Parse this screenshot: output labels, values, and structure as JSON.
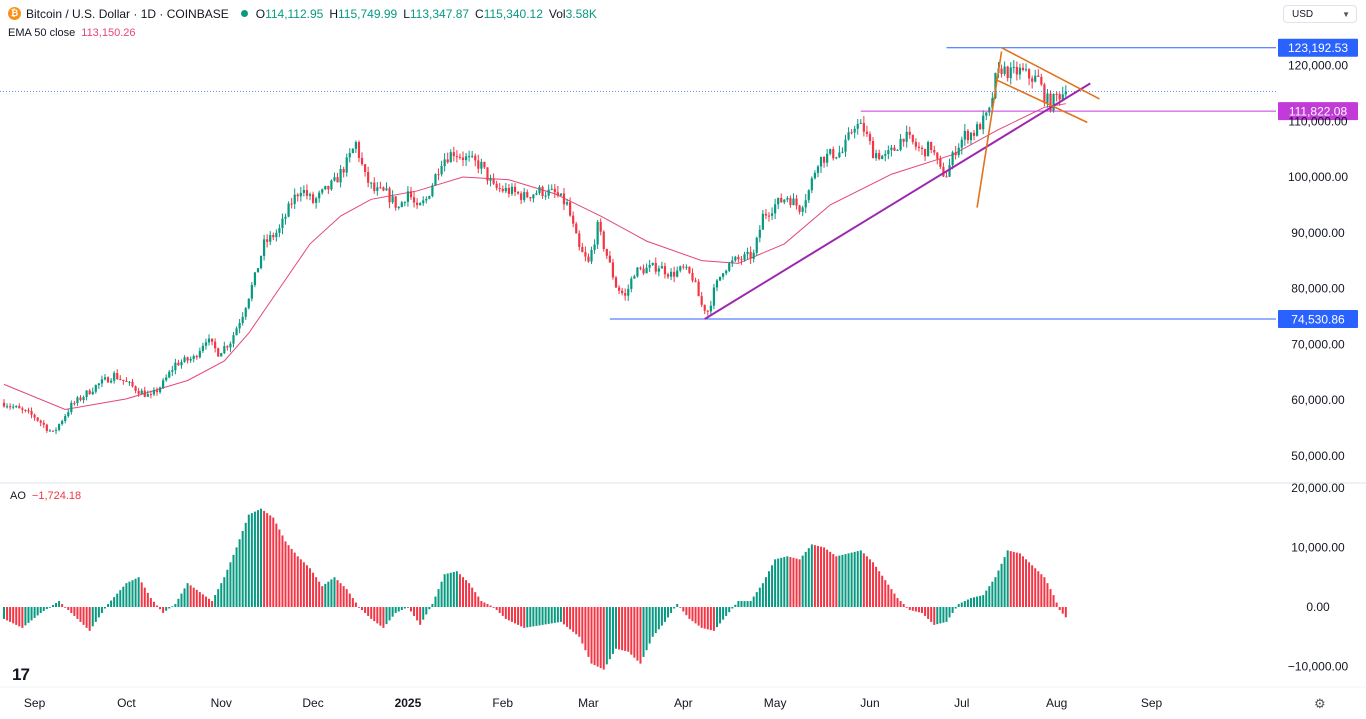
{
  "header": {
    "symbol": "Bitcoin / U.S. Dollar · 1D · COINBASE",
    "open_label": "O",
    "open": "114,112.95",
    "high_label": "H",
    "high": "115,749.99",
    "low_label": "L",
    "low": "113,347.87",
    "close_label": "C",
    "close": "115,340.12",
    "vol_label": "Vol",
    "vol": "3.58K",
    "ema_label": "EMA 50 close",
    "ema_value": "113,150.26"
  },
  "currency": {
    "label": "USD"
  },
  "ao_panel": {
    "label": "AO",
    "value": "−1,724.18"
  },
  "colors": {
    "up": "#089981",
    "down": "#f23645",
    "ema": "#e5457a",
    "hline_blue": "#2962ff",
    "hline_magenta": "#c23bd8",
    "trend_purple": "#9c27b0",
    "pattern_orange": "#e0731d"
  },
  "chart_data": {
    "type": "candlestick",
    "price_axis": {
      "ticks": [
        {
          "value": 120000,
          "label": "120,000.00"
        },
        {
          "value": 110000,
          "label": "110,000.00"
        },
        {
          "value": 100000,
          "label": "100,000.00"
        },
        {
          "value": 90000,
          "label": "90,000.00"
        },
        {
          "value": 80000,
          "label": "80,000.00"
        },
        {
          "value": 70000,
          "label": "70,000.00"
        },
        {
          "value": 60000,
          "label": "60,000.00"
        },
        {
          "value": 50000,
          "label": "50,000.00"
        }
      ]
    },
    "ao_axis": {
      "ticks": [
        {
          "value": 20000,
          "label": "20,000.00"
        },
        {
          "value": 10000,
          "label": "10,000.00"
        },
        {
          "value": 0,
          "label": "0.00"
        },
        {
          "value": -10000,
          "label": "−10,000.00"
        }
      ]
    },
    "time_axis": {
      "ticks": [
        {
          "day": 10,
          "label": "Sep",
          "bold": false
        },
        {
          "day": 40,
          "label": "Oct",
          "bold": false
        },
        {
          "day": 71,
          "label": "Nov",
          "bold": false
        },
        {
          "day": 101,
          "label": "Dec",
          "bold": false
        },
        {
          "day": 132,
          "label": "2025",
          "bold": true
        },
        {
          "day": 163,
          "label": "Feb",
          "bold": false
        },
        {
          "day": 191,
          "label": "Mar",
          "bold": false
        },
        {
          "day": 222,
          "label": "Apr",
          "bold": false
        },
        {
          "day": 252,
          "label": "May",
          "bold": false
        },
        {
          "day": 283,
          "label": "Jun",
          "bold": false
        },
        {
          "day": 313,
          "label": "Jul",
          "bold": false
        },
        {
          "day": 344,
          "label": "Aug",
          "bold": false
        },
        {
          "day": 375,
          "label": "Sep",
          "bold": false
        }
      ]
    },
    "price_path": [
      [
        0,
        59500
      ],
      [
        10,
        57000
      ],
      [
        16,
        54000
      ],
      [
        22,
        59000
      ],
      [
        30,
        62500
      ],
      [
        36,
        64500
      ],
      [
        43,
        62000
      ],
      [
        48,
        60500
      ],
      [
        52,
        63000
      ],
      [
        56,
        66500
      ],
      [
        62,
        67500
      ],
      [
        66,
        71000
      ],
      [
        70,
        68500
      ],
      [
        74,
        70500
      ],
      [
        78,
        75500
      ],
      [
        82,
        82000
      ],
      [
        85,
        88000
      ],
      [
        90,
        90500
      ],
      [
        94,
        95500
      ],
      [
        97,
        98000
      ],
      [
        101,
        95500
      ],
      [
        105,
        97500
      ],
      [
        108,
        99000
      ],
      [
        112,
        102500
      ],
      [
        115,
        106000
      ],
      [
        118,
        100000
      ],
      [
        121,
        97500
      ],
      [
        125,
        97000
      ],
      [
        129,
        94500
      ],
      [
        132,
        97500
      ],
      [
        135,
        94000
      ],
      [
        138,
        96000
      ],
      [
        143,
        103000
      ],
      [
        147,
        104500
      ],
      [
        152,
        103000
      ],
      [
        156,
        102000
      ],
      [
        160,
        98000
      ],
      [
        165,
        97500
      ],
      [
        170,
        96500
      ],
      [
        175,
        97500
      ],
      [
        180,
        97000
      ],
      [
        184,
        95000
      ],
      [
        188,
        87000
      ],
      [
        191,
        84500
      ],
      [
        194,
        91000
      ],
      [
        197,
        86000
      ],
      [
        200,
        80500
      ],
      [
        203,
        78500
      ],
      [
        206,
        83000
      ],
      [
        210,
        83500
      ],
      [
        214,
        84000
      ],
      [
        218,
        82500
      ],
      [
        222,
        83500
      ],
      [
        225,
        82000
      ],
      [
        228,
        77000
      ],
      [
        230,
        76000
      ],
      [
        232,
        79500
      ],
      [
        235,
        83500
      ],
      [
        239,
        85000
      ],
      [
        242,
        85500
      ],
      [
        245,
        86000
      ],
      [
        248,
        93000
      ],
      [
        252,
        95000
      ],
      [
        256,
        96500
      ],
      [
        260,
        94500
      ],
      [
        263,
        97500
      ],
      [
        266,
        103000
      ],
      [
        270,
        104000
      ],
      [
        274,
        104500
      ],
      [
        278,
        109500
      ],
      [
        281,
        108500
      ],
      [
        284,
        104500
      ],
      [
        288,
        103500
      ],
      [
        291,
        105000
      ],
      [
        294,
        107500
      ],
      [
        297,
        106000
      ],
      [
        300,
        104500
      ],
      [
        303,
        105500
      ],
      [
        306,
        101000
      ],
      [
        308,
        100500
      ],
      [
        311,
        105000
      ],
      [
        314,
        107500
      ],
      [
        317,
        108000
      ],
      [
        320,
        110000
      ],
      [
        322,
        111500
      ],
      [
        324,
        117500
      ],
      [
        326,
        119500
      ],
      [
        329,
        118500
      ],
      [
        332,
        119000
      ],
      [
        335,
        118000
      ],
      [
        338,
        117500
      ],
      [
        340,
        114500
      ],
      [
        342,
        113000
      ],
      [
        344,
        114500
      ],
      [
        347,
        115340
      ]
    ],
    "ema50": [
      [
        0,
        62800
      ],
      [
        20,
        58300
      ],
      [
        40,
        60200
      ],
      [
        60,
        63500
      ],
      [
        72,
        67000
      ],
      [
        80,
        72000
      ],
      [
        90,
        80000
      ],
      [
        100,
        88000
      ],
      [
        110,
        93000
      ],
      [
        120,
        96000
      ],
      [
        135,
        97500
      ],
      [
        150,
        100000
      ],
      [
        165,
        99500
      ],
      [
        180,
        97000
      ],
      [
        195,
        93000
      ],
      [
        210,
        88500
      ],
      [
        228,
        85000
      ],
      [
        240,
        84500
      ],
      [
        255,
        88000
      ],
      [
        270,
        95000
      ],
      [
        290,
        100500
      ],
      [
        310,
        104000
      ],
      [
        325,
        108500
      ],
      [
        340,
        112500
      ],
      [
        347,
        113150
      ]
    ],
    "ao_path": [
      [
        0,
        -2000
      ],
      [
        6,
        -3500
      ],
      [
        12,
        -1000
      ],
      [
        18,
        1000
      ],
      [
        24,
        -2000
      ],
      [
        28,
        -4000
      ],
      [
        34,
        500
      ],
      [
        40,
        4000
      ],
      [
        44,
        5000
      ],
      [
        48,
        1500
      ],
      [
        52,
        -1000
      ],
      [
        56,
        500
      ],
      [
        60,
        4000
      ],
      [
        64,
        2500
      ],
      [
        68,
        1000
      ],
      [
        72,
        5000
      ],
      [
        76,
        10000
      ],
      [
        80,
        15500
      ],
      [
        84,
        16500
      ],
      [
        88,
        15000
      ],
      [
        92,
        11000
      ],
      [
        96,
        8500
      ],
      [
        100,
        6500
      ],
      [
        104,
        3500
      ],
      [
        108,
        5000
      ],
      [
        112,
        3000
      ],
      [
        116,
        0
      ],
      [
        120,
        -2000
      ],
      [
        124,
        -3500
      ],
      [
        128,
        -1000
      ],
      [
        132,
        0
      ],
      [
        136,
        -3000
      ],
      [
        140,
        500
      ],
      [
        144,
        5500
      ],
      [
        148,
        6000
      ],
      [
        152,
        4000
      ],
      [
        156,
        1000
      ],
      [
        160,
        0
      ],
      [
        164,
        -2000
      ],
      [
        170,
        -3500
      ],
      [
        176,
        -3000
      ],
      [
        182,
        -2500
      ],
      [
        188,
        -5000
      ],
      [
        192,
        -9500
      ],
      [
        196,
        -10500
      ],
      [
        200,
        -7000
      ],
      [
        204,
        -7500
      ],
      [
        208,
        -9500
      ],
      [
        212,
        -5000
      ],
      [
        216,
        -2500
      ],
      [
        220,
        500
      ],
      [
        224,
        -2000
      ],
      [
        228,
        -3500
      ],
      [
        232,
        -4000
      ],
      [
        236,
        -1500
      ],
      [
        240,
        1000
      ],
      [
        244,
        1000
      ],
      [
        248,
        4000
      ],
      [
        252,
        8000
      ],
      [
        256,
        8500
      ],
      [
        260,
        8000
      ],
      [
        264,
        10500
      ],
      [
        268,
        10000
      ],
      [
        272,
        8500
      ],
      [
        276,
        9000
      ],
      [
        280,
        9500
      ],
      [
        284,
        7500
      ],
      [
        288,
        4500
      ],
      [
        292,
        1500
      ],
      [
        296,
        -500
      ],
      [
        300,
        -1000
      ],
      [
        304,
        -3000
      ],
      [
        308,
        -2500
      ],
      [
        312,
        500
      ],
      [
        316,
        1500
      ],
      [
        320,
        2000
      ],
      [
        324,
        5000
      ],
      [
        328,
        9500
      ],
      [
        332,
        9000
      ],
      [
        336,
        7000
      ],
      [
        340,
        5000
      ],
      [
        343,
        2000
      ],
      [
        345,
        -500
      ],
      [
        347,
        -1724
      ]
    ],
    "horizontal_lines": [
      {
        "value": 123192.53,
        "label": "123,192.53",
        "from_day": 308,
        "color_key": "hline_blue"
      },
      {
        "value": 111822.08,
        "label": "111,822.08",
        "from_day": 280,
        "color_key": "hline_magenta"
      },
      {
        "value": 74530.86,
        "label": "74,530.86",
        "from_day": 198,
        "color_key": "hline_blue"
      }
    ],
    "current_price": {
      "value": 115340.12
    },
    "drawings": [
      {
        "kind": "trendline",
        "color_key": "trend_purple",
        "points": [
          [
            229,
            74530
          ],
          [
            355,
            116800
          ]
        ]
      },
      {
        "kind": "trendline",
        "color_key": "pattern_orange",
        "points": [
          [
            326,
            123192
          ],
          [
            358,
            114000
          ]
        ]
      },
      {
        "kind": "trendline",
        "color_key": "pattern_orange",
        "points": [
          [
            324,
            117500
          ],
          [
            354,
            109800
          ]
        ]
      },
      {
        "kind": "trendline",
        "color_key": "pattern_orange",
        "points": [
          [
            318,
            94500
          ],
          [
            326,
            122500
          ]
        ]
      }
    ]
  }
}
